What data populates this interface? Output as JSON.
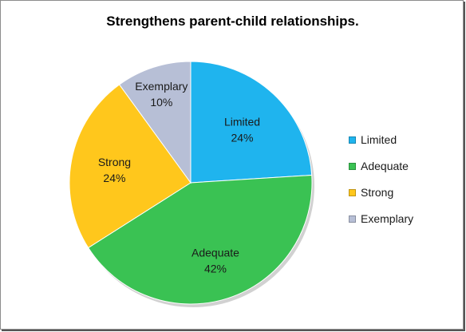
{
  "chart_data": {
    "type": "pie",
    "title": "Strengthens parent-child relationships.",
    "categories": [
      "Limited",
      "Adequate",
      "Strong",
      "Exemplary"
    ],
    "values": [
      24,
      42,
      24,
      10
    ],
    "labels": [
      "24%",
      "42%",
      "24%",
      "10%"
    ],
    "colors": [
      "#1fb4ee",
      "#3ac253",
      "#ffc71c",
      "#b7bfd6"
    ],
    "start_angle_deg": 0,
    "direction": "clockwise",
    "legend": {
      "position": "right",
      "entries": [
        "Limited",
        "Adequate",
        "Strong",
        "Exemplary"
      ]
    }
  }
}
